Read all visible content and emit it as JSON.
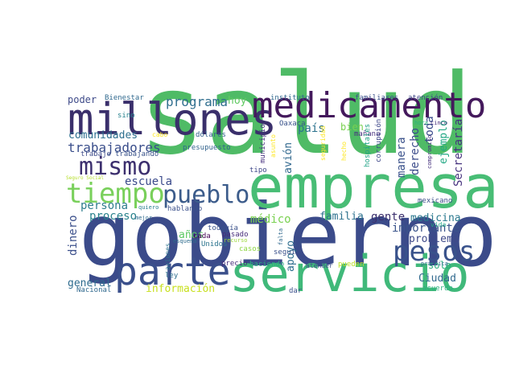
{
  "words": [
    {
      "text": "salud",
      "color": "#4fbb66"
    },
    {
      "text": "gobierno",
      "color": "#3b4b8a"
    },
    {
      "text": "empresa",
      "color": "#48bd75"
    },
    {
      "text": "servicio",
      "color": "#40b97a"
    },
    {
      "text": "millones",
      "color": "#3a2f6b"
    },
    {
      "text": "medicamento",
      "color": "#44195c"
    },
    {
      "text": "parte",
      "color": "#3a4f8b"
    },
    {
      "text": "tiempo",
      "color": "#79d05b"
    },
    {
      "text": "pueblo",
      "color": "#3c5c8b"
    },
    {
      "text": "mismo",
      "color": "#3c2f6e"
    },
    {
      "text": "pesos",
      "color": "#39528b"
    },
    {
      "text": "programa",
      "color": "#2f6e8e"
    },
    {
      "text": "trabajadores",
      "color": "#3a4e8b"
    },
    {
      "text": "comunidades",
      "color": "#2c6f8e"
    },
    {
      "text": "escuela",
      "color": "#3a4a8b"
    },
    {
      "text": "persona",
      "color": "#2f7e8e"
    },
    {
      "text": "proceso",
      "color": "#2b838d"
    },
    {
      "text": "dinero",
      "color": "#3b4f8b"
    },
    {
      "text": "general",
      "color": "#2e6b8e"
    },
    {
      "text": "Nacional",
      "color": "#30698e"
    },
    {
      "text": "información",
      "color": "#c8e020"
    },
    {
      "text": "años",
      "color": "#5cc863"
    },
    {
      "text": "médico",
      "color": "#7ad151"
    },
    {
      "text": "familia",
      "color": "#2d718e"
    },
    {
      "text": "gente",
      "color": "#3b2f6d"
    },
    {
      "text": "importante",
      "color": "#3a538b"
    },
    {
      "text": "problema",
      "color": "#3e4989"
    },
    {
      "text": "medicina",
      "color": "#2a788e"
    },
    {
      "text": "apoyo",
      "color": "#2e6e8e"
    },
    {
      "text": "avión",
      "color": "#31688e"
    },
    {
      "text": "país",
      "color": "#2c728e"
    },
    {
      "text": "bien",
      "color": "#7ad151"
    },
    {
      "text": "manera",
      "color": "#3b528b"
    },
    {
      "text": "derecho",
      "color": "#3b4b8a"
    },
    {
      "text": "toda",
      "color": "#3a4a8b"
    },
    {
      "text": "ejemplo",
      "color": "#22a884"
    },
    {
      "text": "Secretaría",
      "color": "#46327e"
    },
    {
      "text": "Ciudad",
      "color": "#30698e"
    },
    {
      "text": "solo",
      "color": "#2ab07f"
    },
    {
      "text": "ir",
      "color": "#3b518b"
    },
    {
      "text": "poder",
      "color": "#3e4a89"
    },
    {
      "text": "hoy",
      "color": "#60c962"
    },
    {
      "text": "Bienestar",
      "color": "#30698e"
    },
    {
      "text": "sino",
      "color": "#26818e"
    },
    {
      "text": "instituto",
      "color": "#31688e"
    },
    {
      "text": "familiares",
      "color": "#3b528b"
    },
    {
      "text": "atención",
      "color": "#3f4788"
    },
    {
      "text": "dólares",
      "color": "#35608d"
    },
    {
      "text": "cabo",
      "color": "#fde725"
    },
    {
      "text": "presupuesto",
      "color": "#33638d"
    },
    {
      "text": "trabajo",
      "color": "#3e4c8a"
    },
    {
      "text": "trabajando",
      "color": "#3a538b"
    },
    {
      "text": "hablando",
      "color": "#3b518b"
    },
    {
      "text": "todavía",
      "color": "#3b528b"
    },
    {
      "text": "pasado",
      "color": "#472c7a"
    },
    {
      "text": "casos",
      "color": "#8fd744"
    },
    {
      "text": "cada",
      "color": "#440154"
    },
    {
      "text": "Unidos",
      "color": "#2b748e"
    },
    {
      "text": "esquema",
      "color": "#2f6c8e"
    },
    {
      "text": "recurso",
      "color": "#9dd93b"
    },
    {
      "text": "quiero",
      "color": "#287d8e"
    },
    {
      "text": "mejor",
      "color": "#2f6b8e"
    },
    {
      "text": "aviones",
      "color": "#2c728e"
    },
    {
      "text": "precio",
      "color": "#472d7b"
    },
    {
      "text": "haciendo",
      "color": "#29af7f"
    },
    {
      "text": "ley",
      "color": "#2e6f8e"
    },
    {
      "text": "dar",
      "color": "#3c508b"
    },
    {
      "text": "atender",
      "color": "#3c4f8a"
    },
    {
      "text": "pueden",
      "color": "#bddf26"
    },
    {
      "text": "acuerdo",
      "color": "#2ab07f"
    },
    {
      "text": "práctica",
      "color": "#31688e"
    },
    {
      "text": "vida",
      "color": "#22a884"
    },
    {
      "text": "mexicano",
      "color": "#3d4e8a"
    },
    {
      "text": "seguir",
      "color": "#3b518b"
    },
    {
      "text": "falta",
      "color": "#31688e"
    },
    {
      "text": "tipo",
      "color": "#3f4889"
    },
    {
      "text": "municipio",
      "color": "#46307e"
    },
    {
      "text": "asunto",
      "color": "#fde725"
    },
    {
      "text": "Oaxaca",
      "color": "#3a538b"
    },
    {
      "text": "mañana",
      "color": "#46317e"
    },
    {
      "text": "seguridad",
      "color": "#fde725"
    },
    {
      "text": "hecho",
      "color": "#fde725"
    },
    {
      "text": "hospitales",
      "color": "#20a386"
    },
    {
      "text": "corrupción",
      "color": "#3f4889"
    },
    {
      "text": "hora",
      "color": "#2db27d"
    },
    {
      "text": "cinco",
      "color": "#472d7b"
    },
    {
      "text": "compromiso",
      "color": "#46327e"
    },
    {
      "text": "Seguro Social",
      "color": "#b5de2b"
    }
  ]
}
